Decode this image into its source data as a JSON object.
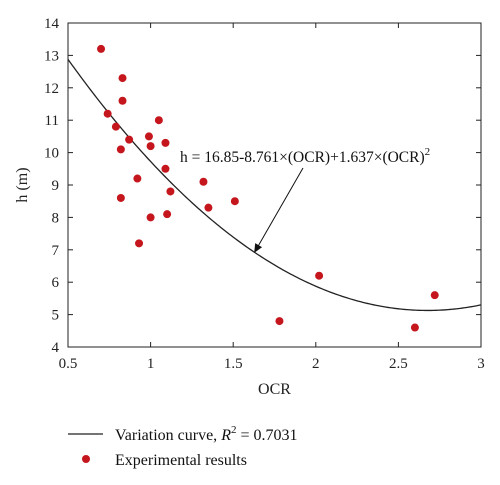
{
  "chart_data": {
    "type": "scatter",
    "title": "",
    "xlabel": "OCR",
    "ylabel": "h (m)",
    "xlim": [
      0.5,
      3
    ],
    "ylim": [
      4,
      14
    ],
    "xticks": [
      0.5,
      1,
      1.5,
      2,
      2.5,
      3
    ],
    "yticks": [
      4,
      5,
      6,
      7,
      8,
      9,
      10,
      11,
      12,
      13,
      14
    ],
    "grid": false,
    "legend_position": "bottom-left outside",
    "series": [
      {
        "name": "Experimental results",
        "kind": "points",
        "color": "#c4161c",
        "points": [
          [
            0.7,
            13.2
          ],
          [
            0.74,
            11.2
          ],
          [
            0.79,
            10.8
          ],
          [
            0.82,
            10.1
          ],
          [
            0.82,
            8.6
          ],
          [
            0.83,
            12.3
          ],
          [
            0.83,
            11.6
          ],
          [
            0.87,
            10.4
          ],
          [
            0.92,
            9.2
          ],
          [
            0.93,
            7.2
          ],
          [
            0.99,
            10.5
          ],
          [
            1.0,
            10.2
          ],
          [
            1.0,
            8.0
          ],
          [
            1.05,
            11.0
          ],
          [
            1.09,
            10.3
          ],
          [
            1.09,
            9.5
          ],
          [
            1.1,
            8.1
          ],
          [
            1.12,
            8.8
          ],
          [
            1.32,
            9.1
          ],
          [
            1.35,
            8.3
          ],
          [
            1.51,
            8.5
          ],
          [
            1.78,
            4.8
          ],
          [
            2.02,
            6.2
          ],
          [
            2.6,
            4.6
          ],
          [
            2.72,
            5.6
          ]
        ]
      },
      {
        "name": "Variation curve, R² = 0.7031",
        "kind": "curve",
        "color": "#222222",
        "equation_coefficients": [
          16.85,
          -8.761,
          1.637
        ],
        "x_range": [
          0.5,
          3
        ]
      }
    ],
    "annotation": {
      "text": "h = 16.85-8.761×(OCR)+1.637×(OCR)",
      "superscript": "2",
      "arrow_target": [
        1.63,
        6.93
      ]
    }
  },
  "legend": {
    "curve_label_prefix": "Variation curve, ",
    "curve_label_r": "R",
    "curve_label_sup": "2",
    "curve_label_value": " = 0.7031",
    "points_label": "Experimental results"
  }
}
